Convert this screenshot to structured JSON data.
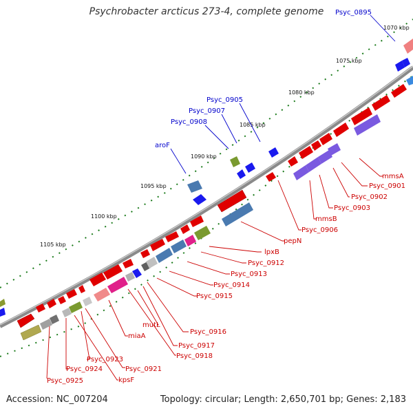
{
  "title": "Psychrobacter arcticus 273-4, complete genome",
  "footer": {
    "accession": "Accession: NC_007204",
    "stats": "Topology: circular; Length: 2,650,701 bp; Genes: 2,183"
  },
  "colors": {
    "backbone": "#7a7a7a",
    "forward_gene": "#e00000",
    "reverse_gene": "#2020ee",
    "tick": "#1a7a1a",
    "red_label": "#cc0000",
    "blue_label": "#0000cc"
  },
  "kbp_ticks": [
    {
      "label": "1070 kbp"
    },
    {
      "label": "1075 kbp"
    },
    {
      "label": "1080 kbp"
    },
    {
      "label": "1085 kbp"
    },
    {
      "label": "1090 kbp"
    },
    {
      "label": "1095 kbp"
    },
    {
      "label": "1100 kbp"
    },
    {
      "label": "1105 kbp"
    }
  ],
  "blue_gene_labels": [
    {
      "label": "Psyc_0895"
    },
    {
      "label": "Psyc_0905"
    },
    {
      "label": "Psyc_0907"
    },
    {
      "label": "Psyc_0908"
    },
    {
      "label": "aroF"
    }
  ],
  "red_gene_labels": [
    {
      "label": "mmsA"
    },
    {
      "label": "Psyc_0901"
    },
    {
      "label": "Psyc_0902"
    },
    {
      "label": "Psyc_0903"
    },
    {
      "label": "mmsB"
    },
    {
      "label": "Psyc_0906"
    },
    {
      "label": "pepN"
    },
    {
      "label": "lpxB"
    },
    {
      "label": "Psyc_0912"
    },
    {
      "label": "Psyc_0913"
    },
    {
      "label": "Psyc_0914"
    },
    {
      "label": "Psyc_0915"
    },
    {
      "label": "Psyc_0916"
    },
    {
      "label": "mutL"
    },
    {
      "label": "Psyc_0917"
    },
    {
      "label": "miaA"
    },
    {
      "label": "Psyc_0918"
    },
    {
      "label": "Psyc_0923"
    },
    {
      "label": "Psyc_0921"
    },
    {
      "label": "Psyc_0924"
    },
    {
      "label": "kpsF"
    },
    {
      "label": "Psyc_0925"
    }
  ]
}
